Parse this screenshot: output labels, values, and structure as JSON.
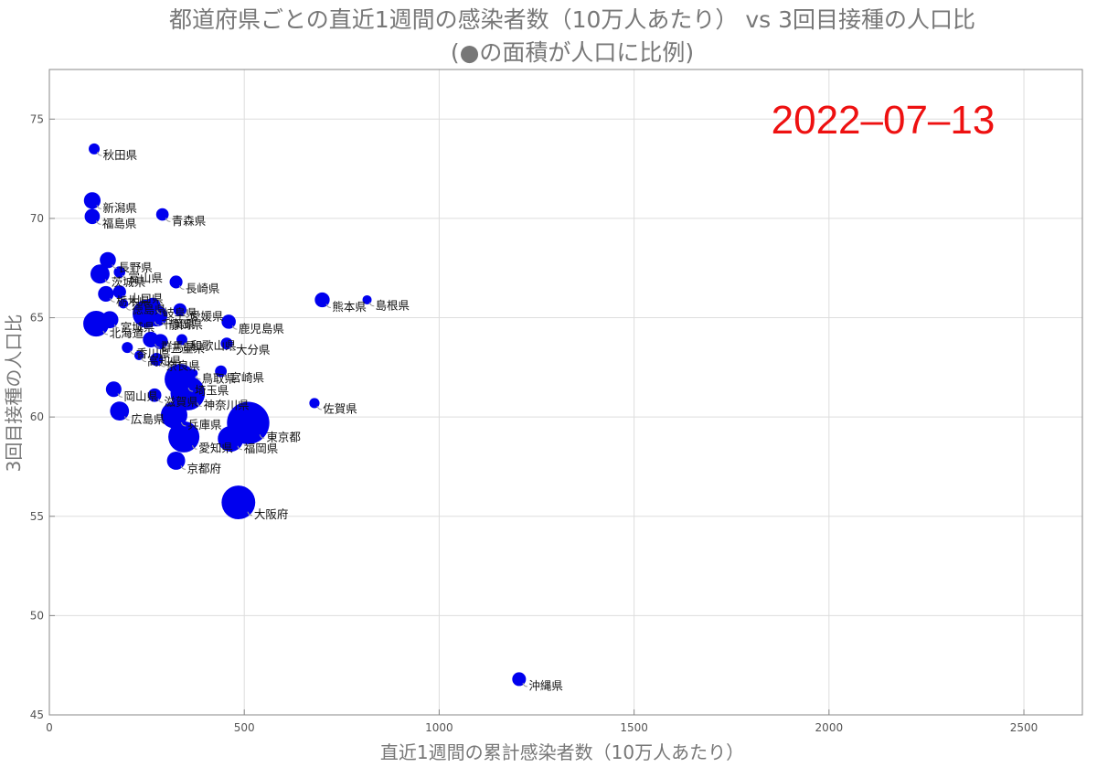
{
  "chart_data": {
    "type": "scatter",
    "title": "都道府県ごとの直近1週間の感染者数（10万人あたり） vs 3回目接種の人口比",
    "subtitle": "(●の面積が人口に比例)",
    "xlabel": "直近1週間の累計感染者数（10万人あたり）",
    "ylabel": "3回目接種の人口比",
    "date_label": "2022–07–13",
    "xlim": [
      0,
      2650
    ],
    "ylim": [
      45,
      77.5
    ],
    "x_ticks": [
      0,
      500,
      1000,
      1500,
      2000,
      2500
    ],
    "y_ticks": [
      45,
      50,
      55,
      60,
      65,
      70,
      75
    ],
    "x_tick_labels": [
      "0",
      "500",
      "1000",
      "1500",
      "2000",
      "2500"
    ],
    "y_tick_labels": [
      "45",
      "50",
      "55",
      "60",
      "65",
      "70",
      "75"
    ],
    "grid": true,
    "marker_color": "#0000ee",
    "size_encodes": "population",
    "points": [
      {
        "label": "秋田県",
        "x": 115,
        "y": 73.5,
        "pop": 0.94
      },
      {
        "label": "新潟県",
        "x": 110,
        "y": 70.9,
        "pop": 2.17
      },
      {
        "label": "福島県",
        "x": 110,
        "y": 70.1,
        "pop": 1.81
      },
      {
        "label": "青森県",
        "x": 290,
        "y": 70.2,
        "pop": 1.22
      },
      {
        "label": "長野県",
        "x": 150,
        "y": 67.9,
        "pop": 2.03
      },
      {
        "label": "茨城県",
        "x": 130,
        "y": 67.2,
        "pop": 2.86
      },
      {
        "label": "富山県",
        "x": 180,
        "y": 67.3,
        "pop": 1.03
      },
      {
        "label": "長崎県",
        "x": 325,
        "y": 66.8,
        "pop": 1.3
      },
      {
        "label": "山口県",
        "x": 180,
        "y": 66.3,
        "pop": 1.33
      },
      {
        "label": "栃木県",
        "x": 145,
        "y": 66.2,
        "pop": 1.92
      },
      {
        "label": "熊本県",
        "x": 700,
        "y": 65.9,
        "pop": 1.73
      },
      {
        "label": "島根県",
        "x": 815,
        "y": 65.9,
        "pop": 0.66
      },
      {
        "label": "徳島県",
        "x": 190,
        "y": 65.7,
        "pop": 0.71
      },
      {
        "label": "岐阜県",
        "x": 265,
        "y": 65.6,
        "pop": 1.97
      },
      {
        "label": "千葉県",
        "x": 250,
        "y": 65.2,
        "pop": 6.28
      },
      {
        "label": "北海道",
        "x": 120,
        "y": 64.7,
        "pop": 5.18
      },
      {
        "label": "宮城県",
        "x": 155,
        "y": 64.9,
        "pop": 2.29
      },
      {
        "label": "愛媛県",
        "x": 335,
        "y": 65.4,
        "pop": 1.33
      },
      {
        "label": "静岡県",
        "x": 275,
        "y": 65.1,
        "pop": 3.63
      },
      {
        "label": "鹿児島県",
        "x": 460,
        "y": 64.8,
        "pop": 1.58
      },
      {
        "label": "香川県",
        "x": 200,
        "y": 63.5,
        "pop": 0.95
      },
      {
        "label": "群馬県",
        "x": 260,
        "y": 63.9,
        "pop": 1.93
      },
      {
        "label": "三重県",
        "x": 285,
        "y": 63.8,
        "pop": 1.77
      },
      {
        "label": "和歌山県",
        "x": 340,
        "y": 63.9,
        "pop": 0.92
      },
      {
        "label": "大分県",
        "x": 455,
        "y": 63.7,
        "pop": 1.12
      },
      {
        "label": "高知県",
        "x": 230,
        "y": 63.1,
        "pop": 0.69
      },
      {
        "label": "奈良県",
        "x": 275,
        "y": 62.9,
        "pop": 1.32
      },
      {
        "label": "鳥取県",
        "x": 370,
        "y": 62.2,
        "pop": 0.55
      },
      {
        "label": "宮崎県",
        "x": 440,
        "y": 62.3,
        "pop": 1.07
      },
      {
        "label": "埼玉県",
        "x": 335,
        "y": 61.9,
        "pop": 7.34
      },
      {
        "label": "岡山県",
        "x": 165,
        "y": 61.4,
        "pop": 1.89
      },
      {
        "label": "滋賀県",
        "x": 270,
        "y": 61.1,
        "pop": 1.41
      },
      {
        "label": "神奈川県",
        "x": 355,
        "y": 61.2,
        "pop": 9.24
      },
      {
        "label": "佐賀県",
        "x": 680,
        "y": 60.7,
        "pop": 0.81
      },
      {
        "label": "広島県",
        "x": 180,
        "y": 60.3,
        "pop": 2.8
      },
      {
        "label": "兵庫県",
        "x": 320,
        "y": 60.1,
        "pop": 5.47
      },
      {
        "label": "東京都",
        "x": 510,
        "y": 59.7,
        "pop": 14.0
      },
      {
        "label": "愛知県",
        "x": 345,
        "y": 59.0,
        "pop": 7.54
      },
      {
        "label": "福岡県",
        "x": 465,
        "y": 58.9,
        "pop": 5.12
      },
      {
        "label": "京都府",
        "x": 325,
        "y": 57.8,
        "pop": 2.58
      },
      {
        "label": "大阪府",
        "x": 485,
        "y": 55.7,
        "pop": 8.84
      },
      {
        "label": "沖縄県",
        "x": 1205,
        "y": 46.8,
        "pop": 1.47
      }
    ]
  }
}
